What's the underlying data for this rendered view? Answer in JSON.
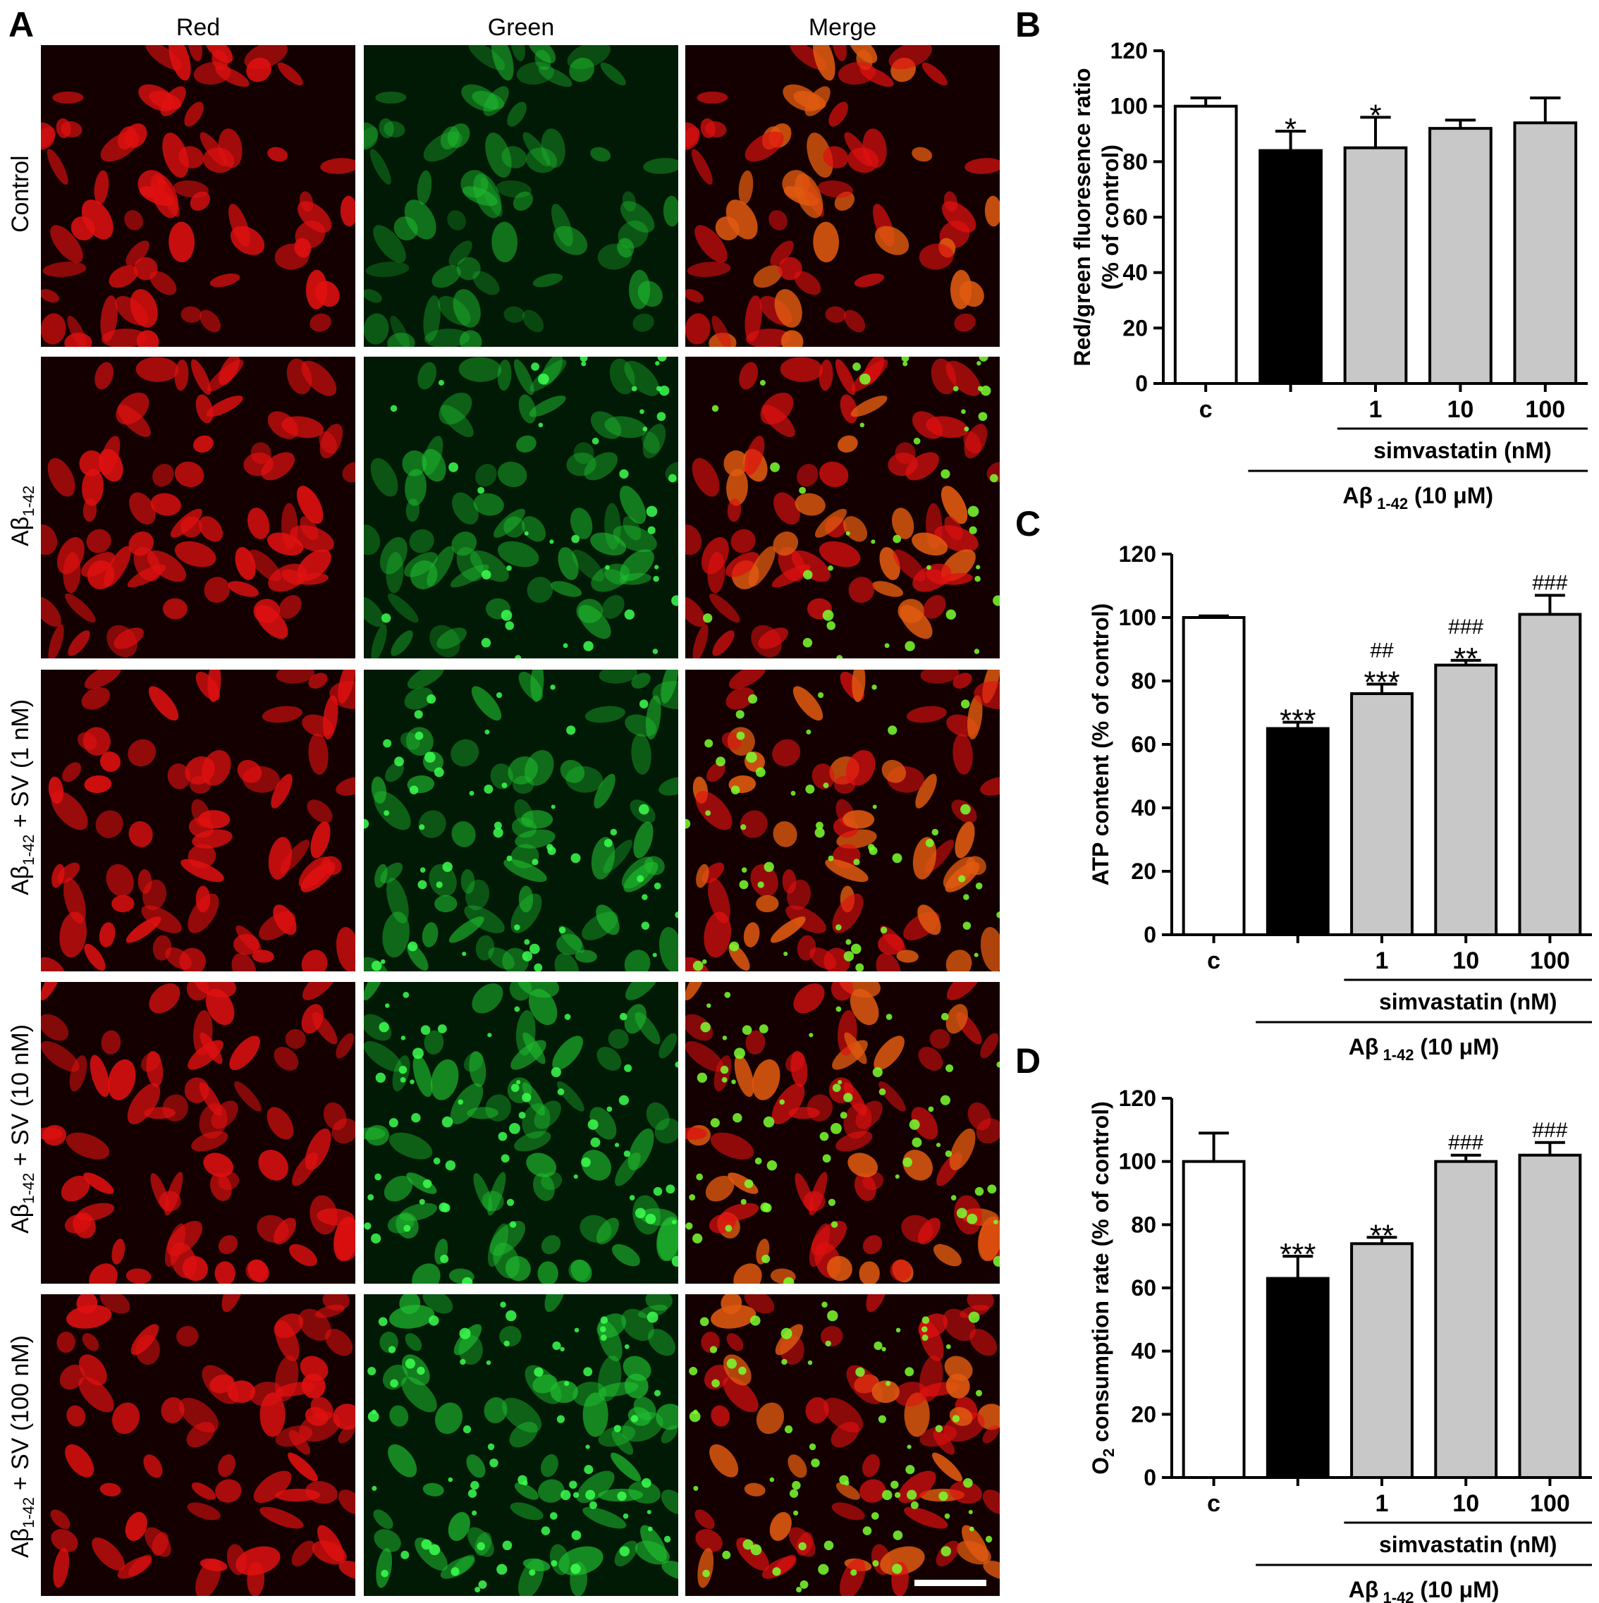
{
  "panels": {
    "A": "A",
    "B": "B",
    "C": "C",
    "D": "D"
  },
  "micrographs": {
    "columns": [
      "Red",
      "Green",
      "Merge"
    ],
    "rows": [
      {
        "label_main": "Control",
        "label_sub": "",
        "label_rest": ""
      },
      {
        "label_main": "Aβ",
        "label_sub": "1-42",
        "label_rest": ""
      },
      {
        "label_main": "Aβ",
        "label_sub": "1-42",
        "label_rest": " + SV (1 nM)"
      },
      {
        "label_main": "Aβ",
        "label_sub": "1-42",
        "label_rest": " + SV (10 nM)"
      },
      {
        "label_main": "Aβ",
        "label_sub": "1-42",
        "label_rest": " + SV (100 nM)"
      }
    ]
  },
  "colors": {
    "control_bar": "#ffffff",
    "abeta_bar": "#000000",
    "simvastatin_bar": "#c8c8c8",
    "red_channel": "#e01010",
    "green_channel": "#20c030"
  },
  "chart_data": [
    {
      "panel": "B",
      "type": "bar",
      "categories": [
        "c",
        "",
        "1",
        "10",
        "100"
      ],
      "values": [
        100,
        84,
        85,
        92,
        94
      ],
      "errors": [
        3,
        7,
        11,
        3,
        9
      ],
      "annotations_top": [
        "",
        "",
        "",
        "",
        ""
      ],
      "annotations": [
        "",
        "*",
        "*",
        "",
        ""
      ],
      "ylabel": "Red/green fluoresence ratio",
      "ylabel2": "(% of control)",
      "ylim": [
        0,
        120
      ],
      "yticks": [
        0,
        20,
        40,
        60,
        80,
        100,
        120
      ],
      "group_label_1": "simvastatin (nM)",
      "group_label_2_main": "Aβ",
      "group_label_2_sub": " 1-42",
      "group_label_2_rest": " (10 μM)"
    },
    {
      "panel": "C",
      "type": "bar",
      "categories": [
        "c",
        "",
        "1",
        "10",
        "100"
      ],
      "values": [
        100,
        65,
        76,
        85,
        101
      ],
      "errors": [
        0.5,
        2,
        3,
        1.5,
        6
      ],
      "annotations_top": [
        "",
        "",
        "##",
        "###",
        "###"
      ],
      "annotations": [
        "",
        "***",
        "***",
        "**",
        ""
      ],
      "ylabel": "ATP content (% of control)",
      "ylabel2": "",
      "ylim": [
        0,
        120
      ],
      "yticks": [
        0,
        20,
        40,
        60,
        80,
        100,
        120
      ],
      "group_label_1": "simvastatin (nM)",
      "group_label_2_main": "Aβ",
      "group_label_2_sub": " 1-42",
      "group_label_2_rest": " (10 μM)"
    },
    {
      "panel": "D",
      "type": "bar",
      "categories": [
        "c",
        "",
        "1",
        "10",
        "100"
      ],
      "values": [
        100,
        63,
        74,
        100,
        102
      ],
      "errors": [
        9,
        7,
        2,
        2,
        4
      ],
      "annotations_top": [
        "",
        "",
        "",
        "###",
        "###"
      ],
      "annotations": [
        "",
        "***",
        "**",
        "",
        ""
      ],
      "ylabel_main": "O",
      "ylabel_sub": "2",
      "ylabel_rest": " consumption rate (% of control)",
      "ylim": [
        0,
        120
      ],
      "yticks": [
        0,
        20,
        40,
        60,
        80,
        100,
        120
      ],
      "group_label_1": "simvastatin (nM)",
      "group_label_2_main": "Aβ",
      "group_label_2_sub": " 1-42",
      "group_label_2_rest": " (10 μM)"
    }
  ]
}
